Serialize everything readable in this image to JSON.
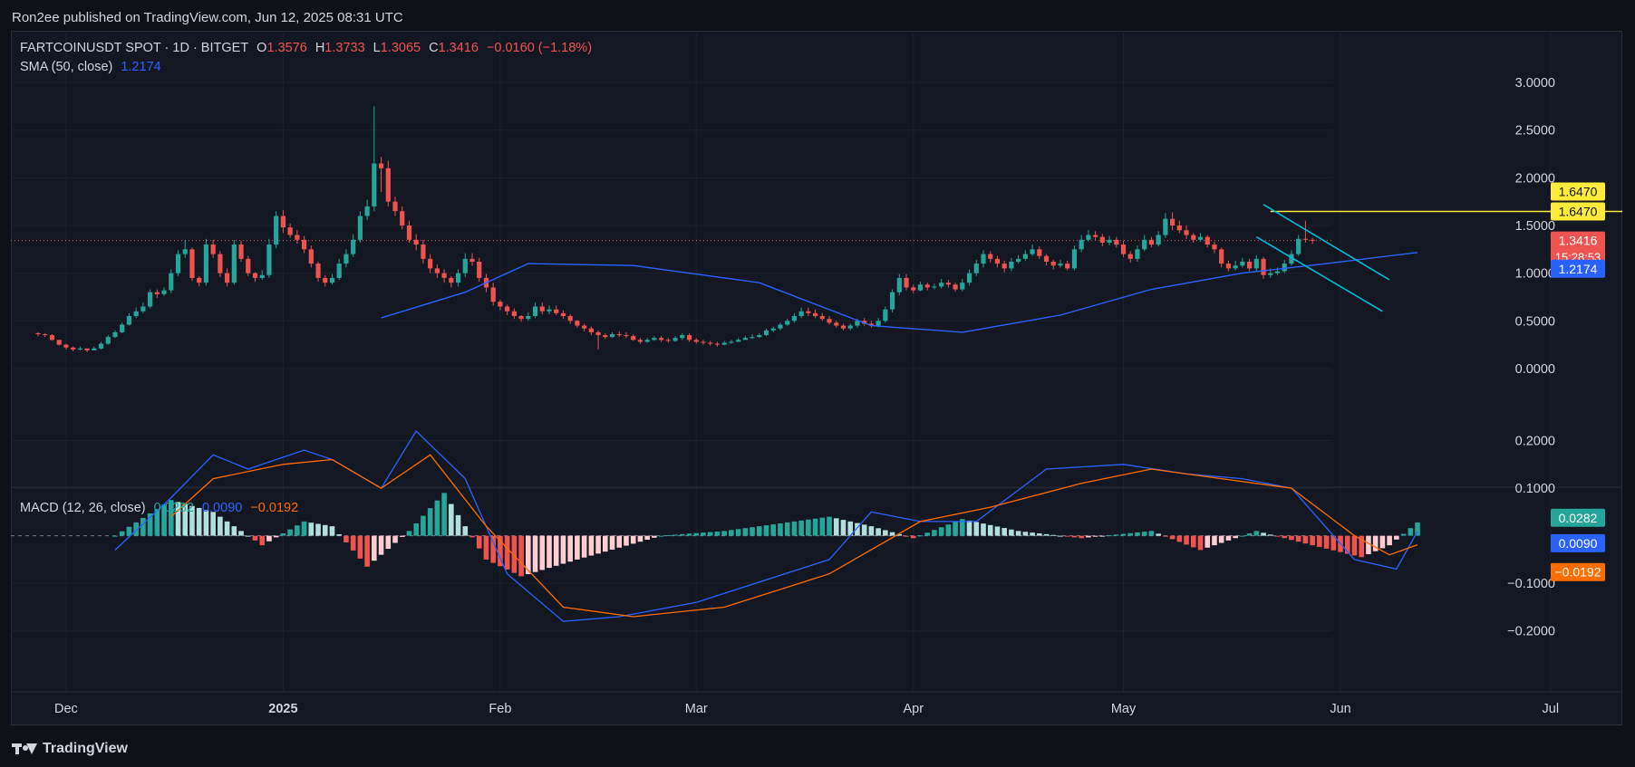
{
  "header": {
    "published": "Ron2ee published on TradingView.com, Jun 12, 2025 08:31 UTC"
  },
  "footer": {
    "brand": "TradingView"
  },
  "colors": {
    "up": "#26a69a",
    "down": "#ef5350",
    "up_light": "#b2dfdb",
    "down_light": "#ffcdd2",
    "sma": "#2962ff",
    "macd": "#2962ff",
    "signal": "#ff6d00",
    "resistance": "#ffeb3b",
    "channel": "#00bcd4",
    "grid": "#1e222d",
    "text": "#d1d4dc",
    "background": "#131722"
  },
  "main_legend": {
    "symbol": "FARTCOINUSDT SPOT · 1D · BITGET",
    "o_label": "O",
    "o": "1.3576",
    "h_label": "H",
    "h": "1.3733",
    "l_label": "L",
    "l": "1.3065",
    "c_label": "C",
    "c": "1.3416",
    "change": "−0.0160 (−1.18%)"
  },
  "sma_legend": {
    "label": "SMA (50, close)",
    "value": "1.2174"
  },
  "macd_legend": {
    "label": "MACD (12, 26, close)",
    "hist": "0.0282",
    "macd": "0.0090",
    "signal": "−0.0192"
  },
  "price_badges": {
    "resistance": "1.6470",
    "resistance2": "1.6470",
    "last": "1.3416",
    "countdown": "15:28:53",
    "sma": "1.2174"
  },
  "macd_badges": {
    "hist": "0.0282",
    "macd": "0.0090",
    "signal": "−0.0192"
  },
  "chart_data": [
    {
      "type": "candlestick",
      "title": "FARTCOINUSDT SPOT · 1D · BITGET",
      "start_date": "2024-11-27",
      "y_ticks": [
        "3.0000",
        "2.5000",
        "2.0000",
        "1.5000",
        "1.0000",
        "0.5000",
        "0.0000"
      ],
      "ylim": [
        -0.2,
        3.2
      ],
      "x_ticks": [
        {
          "date": "2024-12-01",
          "label": "Dec"
        },
        {
          "date": "2025-01-01",
          "label": "2025"
        },
        {
          "date": "2025-02-01",
          "label": "Feb"
        },
        {
          "date": "2025-03-01",
          "label": "Mar"
        },
        {
          "date": "2025-04-01",
          "label": "Apr"
        },
        {
          "date": "2025-05-01",
          "label": "May"
        },
        {
          "date": "2025-06-01",
          "label": "Jun"
        },
        {
          "date": "2025-07-01",
          "label": "Jul"
        }
      ],
      "close": [
        0.36,
        0.35,
        0.3,
        0.25,
        0.22,
        0.2,
        0.21,
        0.19,
        0.21,
        0.26,
        0.33,
        0.38,
        0.46,
        0.55,
        0.6,
        0.65,
        0.8,
        0.78,
        0.82,
        1.0,
        1.2,
        1.25,
        0.95,
        0.9,
        1.3,
        1.2,
        1.0,
        0.9,
        1.3,
        1.15,
        1.0,
        0.95,
        0.98,
        1.3,
        1.6,
        1.48,
        1.4,
        1.35,
        1.25,
        1.1,
        0.95,
        0.9,
        0.95,
        1.1,
        1.2,
        1.35,
        1.6,
        1.7,
        2.15,
        2.1,
        1.75,
        1.65,
        1.5,
        1.35,
        1.3,
        1.15,
        1.05,
        1.0,
        0.95,
        0.9,
        1.0,
        1.15,
        1.12,
        0.95,
        0.85,
        0.7,
        0.65,
        0.6,
        0.55,
        0.52,
        0.55,
        0.65,
        0.6,
        0.62,
        0.58,
        0.55,
        0.5,
        0.45,
        0.42,
        0.38,
        0.35,
        0.33,
        0.36,
        0.35,
        0.34,
        0.3,
        0.28,
        0.3,
        0.32,
        0.3,
        0.29,
        0.32,
        0.35,
        0.3,
        0.28,
        0.27,
        0.26,
        0.25,
        0.27,
        0.28,
        0.3,
        0.32,
        0.33,
        0.35,
        0.4,
        0.42,
        0.46,
        0.5,
        0.55,
        0.6,
        0.58,
        0.55,
        0.52,
        0.48,
        0.45,
        0.42,
        0.45,
        0.5,
        0.47,
        0.45,
        0.5,
        0.62,
        0.8,
        0.95,
        0.85,
        0.82,
        0.88,
        0.85,
        0.86,
        0.9,
        0.88,
        0.83,
        0.9,
        1.0,
        1.1,
        1.2,
        1.15,
        1.1,
        1.05,
        1.12,
        1.15,
        1.2,
        1.25,
        1.18,
        1.12,
        1.08,
        1.1,
        1.05,
        1.25,
        1.35,
        1.4,
        1.38,
        1.32,
        1.35,
        1.3,
        1.2,
        1.15,
        1.25,
        1.35,
        1.3,
        1.4,
        1.57,
        1.5,
        1.45,
        1.4,
        1.35,
        1.38,
        1.3,
        1.25,
        1.1,
        1.05,
        1.08,
        1.12,
        1.05,
        1.15,
        0.98,
        1.0,
        1.02,
        1.1,
        1.2,
        1.36,
        1.35,
        1.3416
      ],
      "high": [
        0.38,
        0.37,
        0.36,
        0.3,
        0.26,
        0.23,
        0.23,
        0.21,
        0.23,
        0.28,
        0.35,
        0.4,
        0.48,
        0.58,
        0.64,
        0.69,
        0.83,
        0.83,
        0.85,
        1.04,
        1.24,
        1.35,
        1.27,
        0.97,
        1.36,
        1.35,
        1.23,
        1.05,
        1.35,
        1.34,
        1.18,
        1.01,
        1.03,
        1.36,
        1.65,
        1.66,
        1.52,
        1.45,
        1.39,
        1.29,
        1.12,
        0.98,
        0.99,
        1.15,
        1.25,
        1.41,
        1.65,
        1.77,
        2.75,
        2.22,
        2.18,
        1.8,
        1.7,
        1.55,
        1.41,
        1.35,
        1.2,
        1.09,
        1.04,
        0.97,
        1.04,
        1.21,
        1.21,
        1.16,
        0.99,
        0.9,
        0.72,
        0.67,
        0.63,
        0.56,
        0.59,
        0.69,
        0.69,
        0.66,
        0.66,
        0.61,
        0.57,
        0.51,
        0.47,
        0.44,
        0.4,
        0.37,
        0.38,
        0.39,
        0.38,
        0.36,
        0.32,
        0.32,
        0.34,
        0.34,
        0.32,
        0.34,
        0.37,
        0.37,
        0.32,
        0.3,
        0.29,
        0.28,
        0.29,
        0.3,
        0.32,
        0.34,
        0.36,
        0.37,
        0.42,
        0.44,
        0.48,
        0.52,
        0.58,
        0.64,
        0.64,
        0.62,
        0.58,
        0.55,
        0.5,
        0.47,
        0.47,
        0.52,
        0.53,
        0.5,
        0.53,
        0.65,
        0.83,
        0.99,
        0.99,
        0.88,
        0.91,
        0.9,
        0.89,
        0.94,
        0.93,
        0.9,
        0.94,
        1.04,
        1.14,
        1.24,
        1.23,
        1.18,
        1.13,
        1.16,
        1.19,
        1.24,
        1.3,
        1.28,
        1.2,
        1.14,
        1.14,
        1.13,
        1.29,
        1.4,
        1.45,
        1.44,
        1.41,
        1.39,
        1.38,
        1.34,
        1.23,
        1.29,
        1.4,
        1.38,
        1.44,
        1.63,
        1.64,
        1.55,
        1.5,
        1.42,
        1.42,
        1.4,
        1.33,
        1.27,
        1.13,
        1.13,
        1.16,
        1.15,
        1.19,
        1.17,
        1.05,
        1.06,
        1.14,
        1.24,
        1.4,
        1.55,
        1.37
      ],
      "low": [
        0.34,
        0.33,
        0.29,
        0.24,
        0.2,
        0.18,
        0.19,
        0.17,
        0.19,
        0.2,
        0.25,
        0.32,
        0.37,
        0.45,
        0.53,
        0.58,
        0.63,
        0.74,
        0.76,
        0.79,
        0.97,
        1.16,
        0.92,
        0.86,
        0.87,
        1.16,
        0.96,
        0.86,
        0.88,
        1.12,
        0.97,
        0.91,
        0.93,
        0.95,
        1.26,
        1.42,
        1.37,
        1.31,
        1.21,
        1.06,
        0.91,
        0.86,
        0.88,
        0.93,
        1.06,
        1.17,
        1.32,
        1.56,
        1.65,
        1.85,
        1.7,
        1.6,
        1.46,
        1.32,
        1.24,
        1.1,
        1.0,
        0.95,
        0.9,
        0.85,
        0.86,
        0.96,
        1.08,
        0.91,
        0.8,
        0.66,
        0.61,
        0.56,
        0.52,
        0.49,
        0.5,
        0.53,
        0.57,
        0.57,
        0.56,
        0.52,
        0.47,
        0.43,
        0.39,
        0.35,
        0.2,
        0.31,
        0.32,
        0.33,
        0.32,
        0.29,
        0.26,
        0.27,
        0.29,
        0.28,
        0.27,
        0.28,
        0.3,
        0.28,
        0.26,
        0.25,
        0.24,
        0.23,
        0.24,
        0.26,
        0.28,
        0.3,
        0.31,
        0.32,
        0.34,
        0.38,
        0.4,
        0.45,
        0.48,
        0.53,
        0.55,
        0.53,
        0.5,
        0.46,
        0.43,
        0.4,
        0.4,
        0.43,
        0.45,
        0.43,
        0.43,
        0.48,
        0.59,
        0.77,
        0.82,
        0.79,
        0.81,
        0.82,
        0.83,
        0.84,
        0.85,
        0.81,
        0.81,
        0.87,
        0.97,
        1.06,
        1.11,
        1.06,
        1.01,
        1.02,
        1.1,
        1.13,
        1.18,
        1.15,
        1.08,
        1.04,
        1.06,
        1.03,
        1.03,
        1.22,
        1.33,
        1.34,
        1.28,
        1.29,
        1.27,
        1.17,
        1.11,
        1.12,
        1.23,
        1.27,
        1.28,
        1.37,
        1.45,
        1.42,
        1.36,
        1.32,
        1.33,
        1.27,
        1.21,
        1.06,
        1.02,
        1.03,
        1.06,
        1.02,
        1.02,
        0.94,
        0.95,
        0.98,
        1.0,
        1.08,
        1.18,
        1.32,
        1.3065
      ]
    },
    {
      "type": "line",
      "series": [
        {
          "name": "SMA (50, close)",
          "start_index": 49,
          "x_dates": [
            "2025-01-15",
            "2025-01-27",
            "2025-02-05",
            "2025-02-20",
            "2025-03-10",
            "2025-03-26",
            "2025-04-08",
            "2025-04-22",
            "2025-05-05",
            "2025-05-18",
            "2025-05-30",
            "2025-06-12"
          ],
          "values": [
            0.53,
            0.8,
            1.1,
            1.08,
            0.9,
            0.45,
            0.38,
            0.56,
            0.83,
            1.0,
            1.1,
            1.2174
          ]
        }
      ]
    },
    {
      "type": "bar",
      "title": "MACD (12, 26, close)",
      "y_ticks": [
        "0.2000",
        "0.1000",
        "−0.1000",
        "−0.2000"
      ],
      "ylim": [
        -0.21,
        0.22
      ],
      "series": [
        {
          "name": "macd",
          "x_dates": [
            "2024-12-08",
            "2024-12-16",
            "2024-12-22",
            "2024-12-27",
            "2025-01-04",
            "2025-01-08",
            "2025-01-15",
            "2025-01-20",
            "2025-01-27",
            "2025-02-02",
            "2025-02-10",
            "2025-02-18",
            "2025-03-01",
            "2025-03-20",
            "2025-03-26",
            "2025-04-02",
            "2025-04-10",
            "2025-04-20",
            "2025-05-01",
            "2025-05-10",
            "2025-05-18",
            "2025-05-25",
            "2025-06-03",
            "2025-06-09",
            "2025-06-12"
          ],
          "values": [
            -0.03,
            0.08,
            0.17,
            0.14,
            0.18,
            0.16,
            0.1,
            0.22,
            0.12,
            -0.08,
            -0.18,
            -0.17,
            -0.14,
            -0.05,
            0.05,
            0.03,
            0.03,
            0.14,
            0.15,
            0.13,
            0.12,
            0.1,
            -0.05,
            -0.07,
            0.009
          ]
        },
        {
          "name": "signal",
          "x_dates": [
            "2024-12-16",
            "2024-12-22",
            "2025-01-01",
            "2025-01-08",
            "2025-01-15",
            "2025-01-22",
            "2025-01-30",
            "2025-02-10",
            "2025-02-20",
            "2025-03-05",
            "2025-03-20",
            "2025-04-02",
            "2025-04-12",
            "2025-04-25",
            "2025-05-05",
            "2025-05-15",
            "2025-05-25",
            "2025-06-03",
            "2025-06-08",
            "2025-06-12"
          ],
          "values": [
            0.04,
            0.12,
            0.15,
            0.16,
            0.1,
            0.17,
            0.02,
            -0.15,
            -0.17,
            -0.15,
            -0.08,
            0.03,
            0.06,
            0.11,
            0.14,
            0.12,
            0.1,
            0.0,
            -0.04,
            -0.019
          ]
        },
        {
          "name": "histogram",
          "x_dates": [
            "2024-12-08",
            "2024-12-16",
            "2024-12-22",
            "2024-12-29",
            "2025-01-04",
            "2025-01-08",
            "2025-01-13",
            "2025-01-19",
            "2025-01-24",
            "2025-01-30",
            "2025-02-04",
            "2025-02-12",
            "2025-02-24",
            "2025-03-05",
            "2025-03-20",
            "2025-03-26",
            "2025-04-01",
            "2025-04-08",
            "2025-04-16",
            "2025-04-25",
            "2025-05-05",
            "2025-05-12",
            "2025-05-20",
            "2025-05-28",
            "2025-06-04",
            "2025-06-08",
            "2025-06-12"
          ],
          "values": [
            0.0,
            0.075,
            0.05,
            -0.02,
            0.03,
            0.02,
            -0.065,
            0.01,
            0.09,
            -0.05,
            -0.085,
            -0.05,
            0.0,
            0.01,
            0.04,
            0.02,
            -0.005,
            0.035,
            0.01,
            -0.005,
            0.01,
            -0.03,
            0.01,
            -0.02,
            -0.045,
            -0.02,
            0.028
          ]
        }
      ]
    },
    {
      "type": "line",
      "title": "annotations",
      "series": [
        {
          "name": "resistance",
          "x_dates": [
            "2025-05-22",
            "2025-07-14"
          ],
          "values": [
            1.647,
            1.647
          ]
        },
        {
          "name": "channel-upper",
          "x_dates": [
            "2025-05-21",
            "2025-06-08"
          ],
          "values": [
            1.72,
            0.93
          ]
        },
        {
          "name": "channel-lower",
          "x_dates": [
            "2025-05-20",
            "2025-06-07"
          ],
          "values": [
            1.38,
            0.6
          ]
        }
      ]
    }
  ]
}
